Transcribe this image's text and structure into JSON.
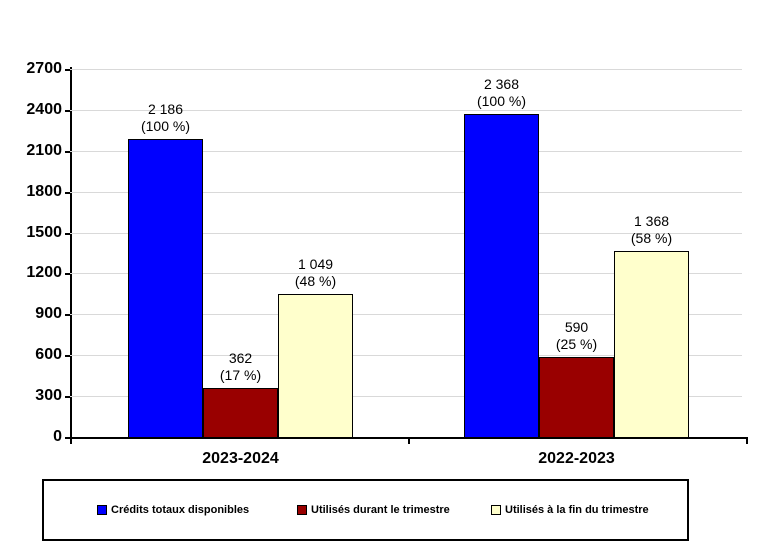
{
  "chart_data": {
    "type": "bar",
    "title": "",
    "categories": [
      "2023-2024",
      "2022-2023"
    ],
    "series": [
      {
        "name": "Crédits totaux disponibles",
        "color": "#0000FF",
        "values": [
          2186,
          2368
        ],
        "point_labels": [
          [
            "2 186",
            "(100 %)"
          ],
          [
            "2 368",
            "(100 %)"
          ]
        ]
      },
      {
        "name": "Utilisés durant le trimestre",
        "color": "#990000",
        "values": [
          362,
          590
        ],
        "point_labels": [
          [
            "362",
            "(17 %)"
          ],
          [
            "590",
            "(25 %)"
          ]
        ]
      },
      {
        "name": "Utilisés à la fin du trimestre",
        "color": "#FFFFCC",
        "values": [
          1049,
          1368
        ],
        "point_labels": [
          [
            "1 049",
            "(48 %)"
          ],
          [
            "1 368",
            "(58 %)"
          ]
        ]
      }
    ],
    "ylim": [
      0,
      2700
    ],
    "ytick_step": 300,
    "ytick_labels": [
      "0",
      "300",
      "600",
      "900",
      "1200",
      "1500",
      "1800",
      "2100",
      "2400",
      "2700"
    ],
    "grid": true,
    "grid_color": "#D9D9D9",
    "axis_color": "#000000",
    "background_color": "#FFFFFF",
    "legend_position": "bottom"
  }
}
